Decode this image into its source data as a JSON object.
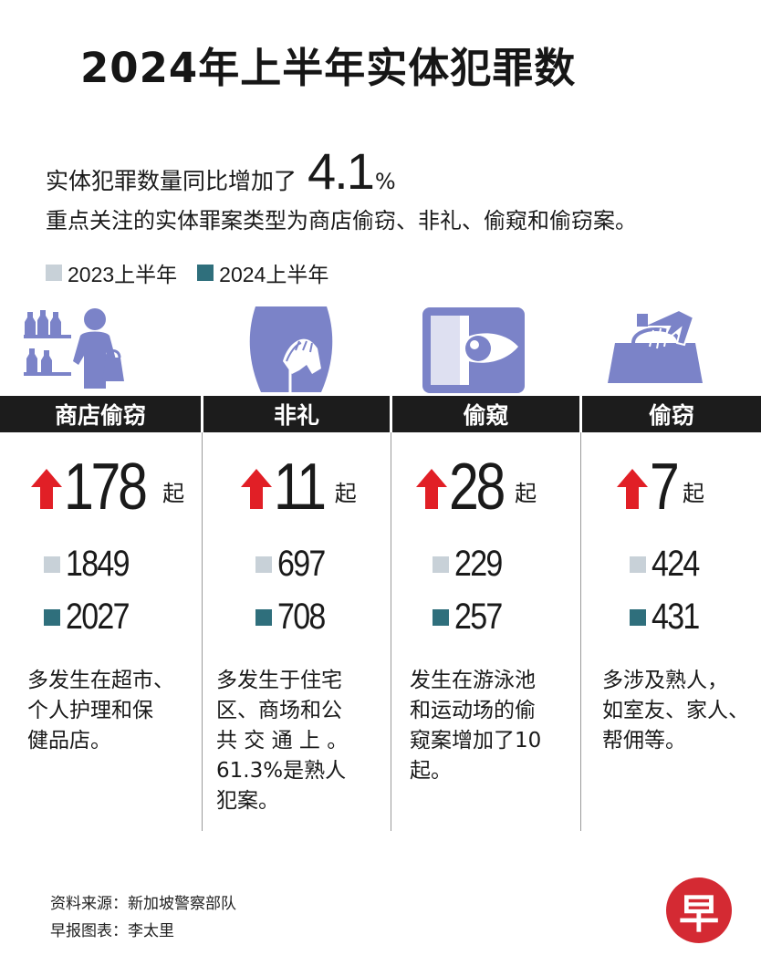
{
  "title": "2024年上半年实体犯罪数",
  "summary": {
    "line1_prefix": "实体犯罪数量同比增加了",
    "line1_value": "4.1",
    "line1_unit": "%",
    "line2": "重点关注的实体罪案类型为商店偷窃、非礼、偷窥和偷窃案。"
  },
  "legend": [
    {
      "label": "2023上半年",
      "color": "#c8d1d8"
    },
    {
      "label": "2024上半年",
      "color": "#2f6f7c"
    }
  ],
  "colors": {
    "accent": "#e11f26",
    "icon": "#7b83c8",
    "bar": "#1c1c1c"
  },
  "chart_data": {
    "type": "table",
    "title": "2024年上半年实体犯罪数",
    "series": [
      {
        "name": "2023上半年",
        "values": [
          1849,
          697,
          229,
          424
        ]
      },
      {
        "name": "2024上半年",
        "values": [
          2027,
          708,
          257,
          431
        ]
      }
    ],
    "categories": [
      "商店偷窃",
      "非礼",
      "偷窥",
      "偷窃"
    ],
    "increase": [
      178,
      11,
      28,
      7
    ],
    "increase_unit": "起"
  },
  "columns": [
    {
      "name": "商店偷窃",
      "increase": "178",
      "unit": "起",
      "v2023": "1849",
      "v2024": "2027",
      "note": [
        "多发生在超市、",
        "个人护理和保",
        "健品店。"
      ]
    },
    {
      "name": "非礼",
      "increase": "11",
      "unit": "起",
      "v2023": "697",
      "v2024": "708",
      "note": [
        "多发生于住宅",
        "区、商场和公",
        "共 交 通 上 。",
        "61.3%是熟人",
        "犯案。"
      ]
    },
    {
      "name": "偷窥",
      "increase": "28",
      "unit": "起",
      "v2023": "229",
      "v2024": "257",
      "note": [
        "发生在游泳池",
        "和运动场的偷",
        "窥案增加了10",
        "起。"
      ]
    },
    {
      "name": "偷窃",
      "increase": "7",
      "unit": "起",
      "v2023": "424",
      "v2024": "431",
      "note": [
        "多涉及熟人，",
        "如室友、家人、",
        "帮佣等。"
      ]
    }
  ],
  "source": {
    "line1": "资料来源：新加坡警察部队",
    "line2": "早报图表：李太里"
  },
  "logo": "早"
}
